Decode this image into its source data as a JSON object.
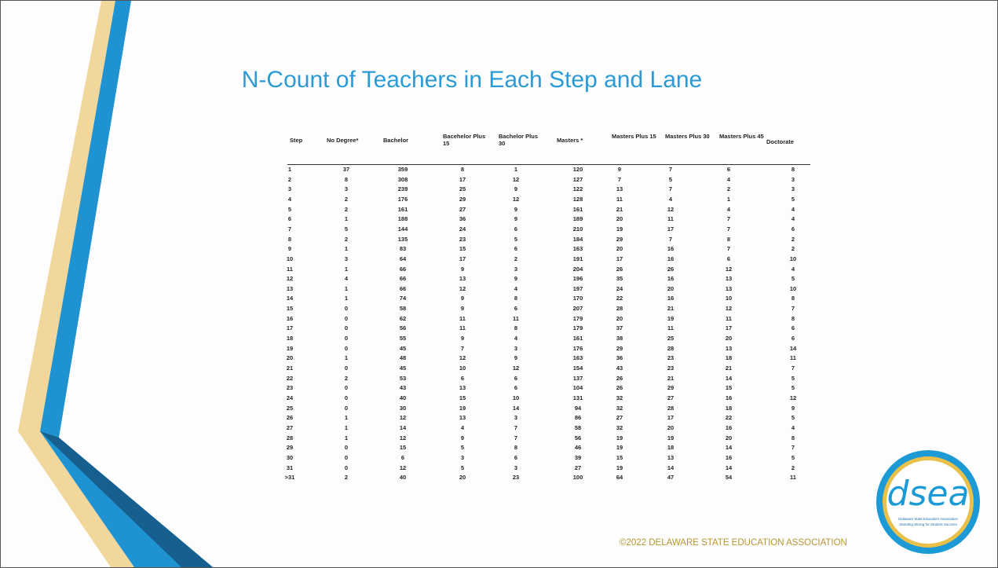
{
  "title": "N-Count of Teachers in Each Step and Lane",
  "table": {
    "headers": [
      "Step",
      "No Degree*",
      "Bachelor",
      "Bacehelor Plus 15",
      "Bachelor Plus 30",
      "Masters *",
      "Masters Plus 15",
      "Masters Plus 30",
      "Masters Plus 45",
      "Doctorate"
    ],
    "rows": [
      [
        1,
        37,
        359,
        8,
        1,
        120,
        9,
        7,
        6,
        8
      ],
      [
        2,
        8,
        308,
        17,
        12,
        127,
        7,
        5,
        4,
        3
      ],
      [
        3,
        3,
        239,
        25,
        9,
        122,
        13,
        7,
        2,
        3
      ],
      [
        4,
        2,
        176,
        29,
        12,
        128,
        11,
        4,
        1,
        5
      ],
      [
        5,
        2,
        161,
        27,
        9,
        161,
        21,
        12,
        4,
        4
      ],
      [
        6,
        1,
        188,
        36,
        9,
        189,
        20,
        11,
        7,
        4
      ],
      [
        7,
        5,
        144,
        24,
        6,
        210,
        19,
        17,
        7,
        6
      ],
      [
        8,
        2,
        135,
        23,
        5,
        184,
        29,
        7,
        8,
        2
      ],
      [
        9,
        1,
        83,
        15,
        6,
        163,
        20,
        16,
        7,
        2
      ],
      [
        10,
        3,
        64,
        17,
        2,
        191,
        17,
        16,
        6,
        10
      ],
      [
        11,
        1,
        66,
        9,
        3,
        204,
        26,
        26,
        12,
        4
      ],
      [
        12,
        4,
        66,
        13,
        9,
        196,
        35,
        16,
        13,
        5
      ],
      [
        13,
        1,
        66,
        12,
        4,
        197,
        24,
        20,
        13,
        10
      ],
      [
        14,
        1,
        74,
        9,
        8,
        170,
        22,
        16,
        10,
        8
      ],
      [
        15,
        0,
        58,
        9,
        6,
        207,
        28,
        21,
        12,
        7
      ],
      [
        16,
        0,
        62,
        11,
        11,
        179,
        20,
        19,
        11,
        8
      ],
      [
        17,
        0,
        56,
        11,
        8,
        179,
        37,
        11,
        17,
        6
      ],
      [
        18,
        0,
        55,
        9,
        4,
        161,
        38,
        25,
        20,
        6
      ],
      [
        19,
        0,
        45,
        7,
        3,
        176,
        29,
        28,
        13,
        14
      ],
      [
        20,
        1,
        48,
        12,
        9,
        163,
        36,
        23,
        18,
        11
      ],
      [
        21,
        0,
        45,
        10,
        12,
        154,
        43,
        23,
        21,
        7
      ],
      [
        22,
        2,
        53,
        6,
        6,
        137,
        26,
        21,
        14,
        5
      ],
      [
        23,
        0,
        43,
        13,
        6,
        104,
        26,
        29,
        15,
        5
      ],
      [
        24,
        0,
        40,
        15,
        10,
        131,
        32,
        27,
        16,
        12
      ],
      [
        25,
        0,
        30,
        19,
        14,
        94,
        32,
        28,
        18,
        9
      ],
      [
        26,
        1,
        12,
        13,
        3,
        86,
        27,
        17,
        22,
        5
      ],
      [
        27,
        1,
        14,
        4,
        7,
        58,
        32,
        20,
        16,
        4
      ],
      [
        28,
        1,
        12,
        9,
        7,
        56,
        19,
        19,
        20,
        8
      ],
      [
        29,
        0,
        15,
        5,
        8,
        46,
        19,
        18,
        14,
        7
      ],
      [
        30,
        0,
        6,
        3,
        6,
        39,
        15,
        13,
        16,
        5
      ],
      [
        31,
        0,
        12,
        5,
        3,
        27,
        19,
        14,
        14,
        2
      ],
      [
        ">31",
        2,
        40,
        20,
        23,
        100,
        64,
        47,
        54,
        11
      ]
    ]
  },
  "footer": "©2022 DELAWARE STATE EDUCATION ASSOCIATION",
  "logo": {
    "text": "dsea",
    "line1": "Delaware State Education Association",
    "line2": "Standing Strong for Student Success"
  }
}
